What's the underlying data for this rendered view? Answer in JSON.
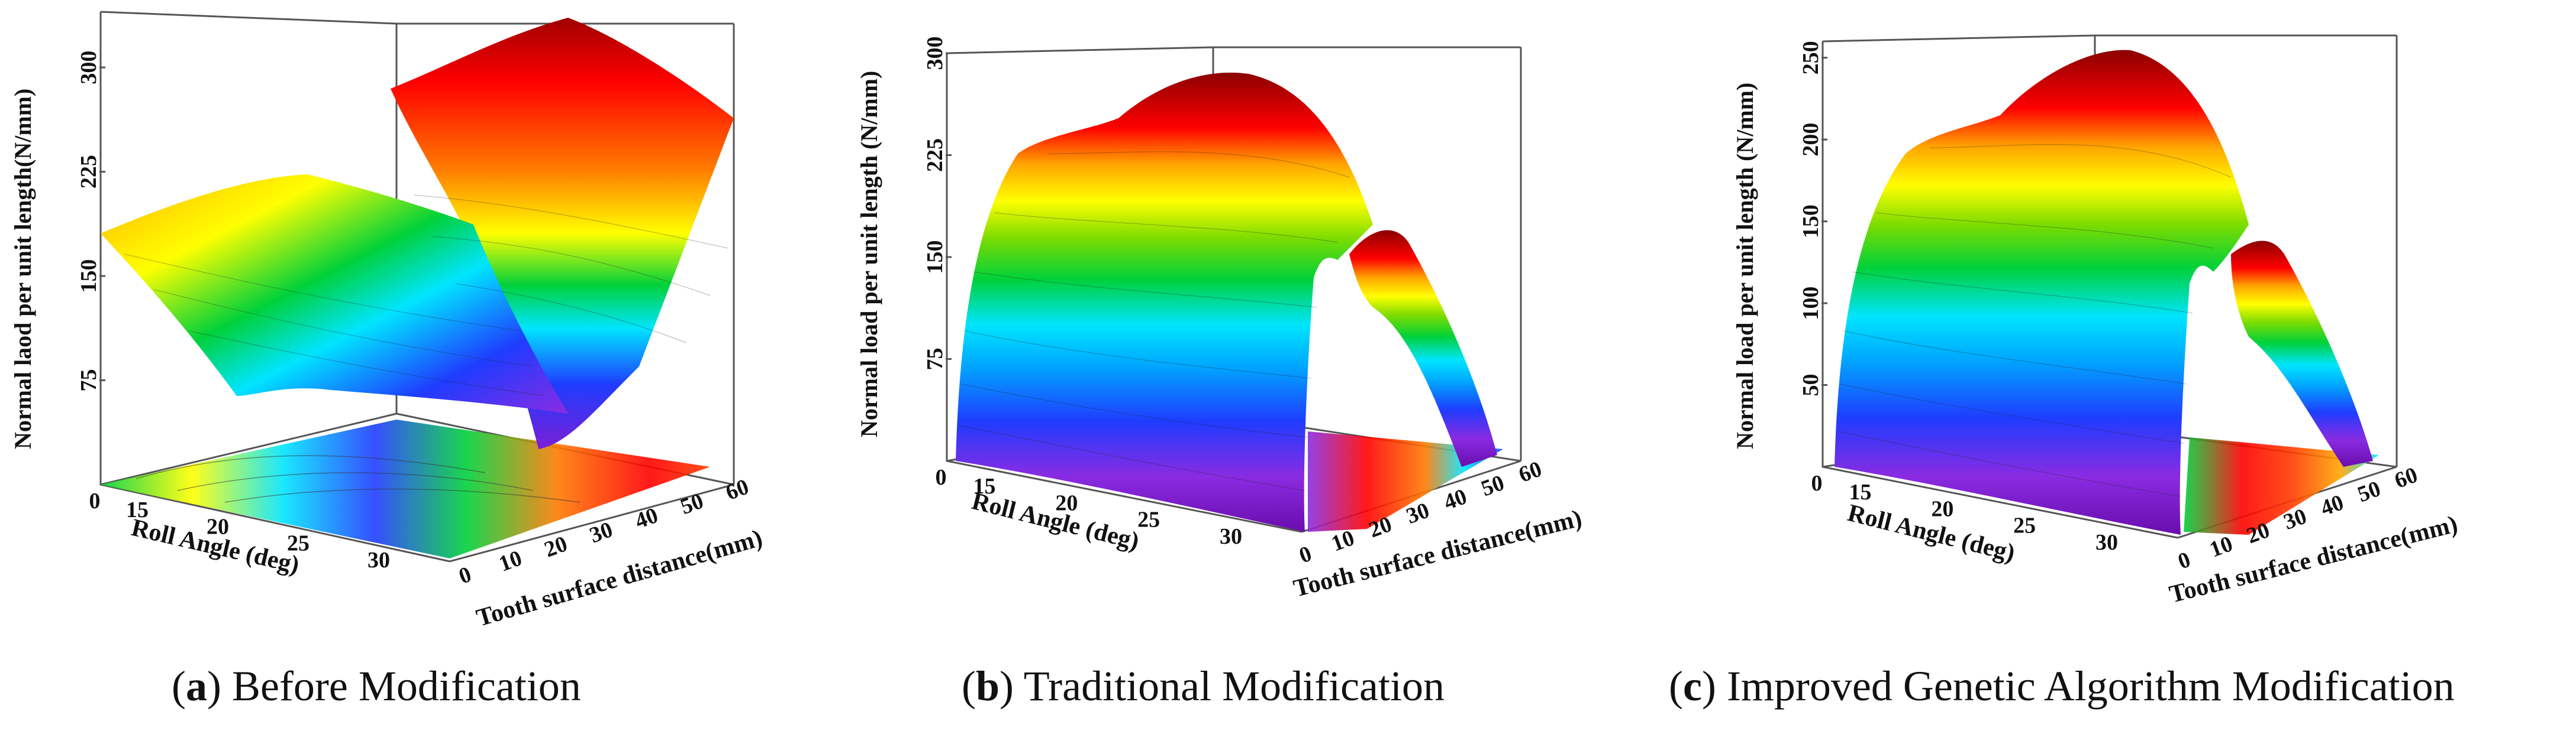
{
  "colors": {
    "ramp": [
      "#6a0dad",
      "#8a2be2",
      "#1f3cff",
      "#00a6ff",
      "#00e5ff",
      "#00d13a",
      "#7ddc00",
      "#ffff00",
      "#ffa500",
      "#ff3a00",
      "#ff0000",
      "#b00000"
    ],
    "frame": "#555555",
    "text": "#111111"
  },
  "chart_data": [
    {
      "type": "surface3d",
      "title": "Before Modification",
      "caption_letter": "a",
      "zlabel": "Normal laod per unit length(N/mm)",
      "xlabel": "Roll Angle (deg)",
      "ylabel": "Tooth surface distance(mm)",
      "zticks": [
        "75",
        "150",
        "225",
        "300"
      ],
      "xticks": [
        "0",
        "15",
        "20",
        "25",
        "30"
      ],
      "yticks": [
        "0",
        "10",
        "20",
        "30",
        "40",
        "50",
        "60"
      ],
      "zlim": [
        0,
        340
      ],
      "description": "Load surface with a low plateau on the left part of the tooth and a high ridge up to about 330 N/mm at the far end"
    },
    {
      "type": "surface3d",
      "title": "Traditional Modification",
      "caption_letter": "b",
      "zlabel": "Normal load per unit length (N/mm)",
      "xlabel": "Roll Angle (deg)",
      "ylabel": "Tooth surface distance(mm)",
      "zticks": [
        "75",
        "150",
        "225",
        "300"
      ],
      "xticks": [
        "0",
        "15",
        "20",
        "25",
        "30"
      ],
      "yticks": [
        "0",
        "10",
        "20",
        "30",
        "40",
        "50",
        "60"
      ],
      "zlim": [
        0,
        300
      ],
      "description": "Arch shaped load distribution peaking near 300 N/mm in the middle of the tooth"
    },
    {
      "type": "surface3d",
      "title": "Improved Genetic Algorithm Modification",
      "caption_letter": "c",
      "zlabel": "Normal load per unit length (N/mm)",
      "xlabel": "Roll Angle (deg)",
      "ylabel": "Tooth surface distance(mm)",
      "zticks": [
        "50",
        "100",
        "150",
        "200",
        "250"
      ],
      "xticks": [
        "0",
        "15",
        "20",
        "25",
        "30"
      ],
      "yticks": [
        "0",
        "10",
        "20",
        "30",
        "40",
        "50",
        "60"
      ],
      "zlim": [
        0,
        260
      ],
      "description": "Smoother arch shaped load distribution peaking near 255 N/mm"
    }
  ]
}
